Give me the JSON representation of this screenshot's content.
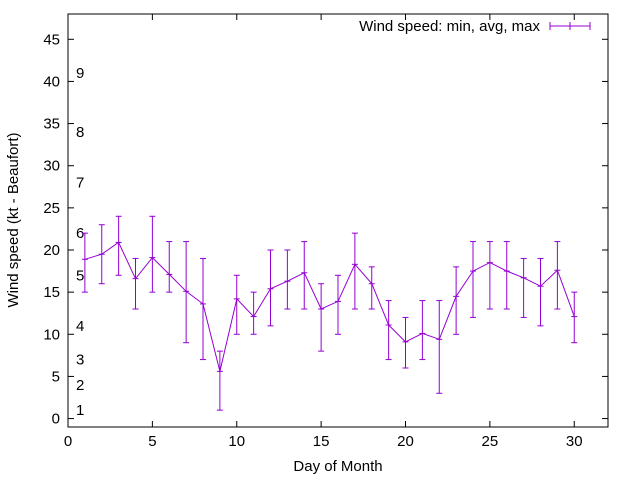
{
  "chart_data": {
    "type": "line",
    "xlabel": "Day of Month",
    "ylabel": "Wind speed (kt - Beaufort)",
    "xlim": [
      0,
      32
    ],
    "ylim": [
      -1,
      48
    ],
    "xticks": [
      0,
      5,
      10,
      15,
      20,
      25,
      30
    ],
    "yticks": [
      0,
      5,
      10,
      15,
      20,
      25,
      30,
      35,
      40,
      45
    ],
    "grid": false,
    "legend_position": "top-right",
    "series": [
      {
        "name": "Wind speed: min, avg, max",
        "color": "#9400d3",
        "x": [
          1,
          2,
          3,
          4,
          5,
          6,
          7,
          8,
          9,
          10,
          11,
          12,
          13,
          14,
          15,
          16,
          17,
          18,
          19,
          20,
          21,
          22,
          23,
          24,
          25,
          26,
          27,
          28,
          29,
          30
        ],
        "avg": [
          18.9,
          19.5,
          20.9,
          16.6,
          19.1,
          17.1,
          15.1,
          13.6,
          5.6,
          14.2,
          12.1,
          15.4,
          16.3,
          17.3,
          13.0,
          13.9,
          18.3,
          16.0,
          11.1,
          9.1,
          10.1,
          9.4,
          14.5,
          17.5,
          18.5,
          17.5,
          16.7,
          15.7,
          17.6,
          12.1
        ],
        "min": [
          15,
          16,
          17,
          13,
          15,
          15,
          9,
          7,
          1,
          10,
          10,
          11,
          13,
          13,
          8,
          10,
          13,
          13,
          7,
          6,
          7,
          3,
          10,
          12,
          13,
          13,
          12,
          11,
          13,
          9
        ],
        "max": [
          22,
          23,
          24,
          19,
          24,
          21,
          21,
          19,
          8,
          17,
          15,
          20,
          20,
          21,
          16,
          17,
          22,
          18,
          14,
          12,
          14,
          14,
          18,
          21,
          21,
          21,
          19,
          19,
          21,
          15
        ]
      }
    ],
    "beaufort_labels": [
      {
        "label": "1",
        "y": 1
      },
      {
        "label": "2",
        "y": 4
      },
      {
        "label": "3",
        "y": 7
      },
      {
        "label": "4",
        "y": 11
      },
      {
        "label": "5",
        "y": 17
      },
      {
        "label": "6",
        "y": 22
      },
      {
        "label": "7",
        "y": 28
      },
      {
        "label": "8",
        "y": 34
      },
      {
        "label": "9",
        "y": 41
      }
    ]
  }
}
